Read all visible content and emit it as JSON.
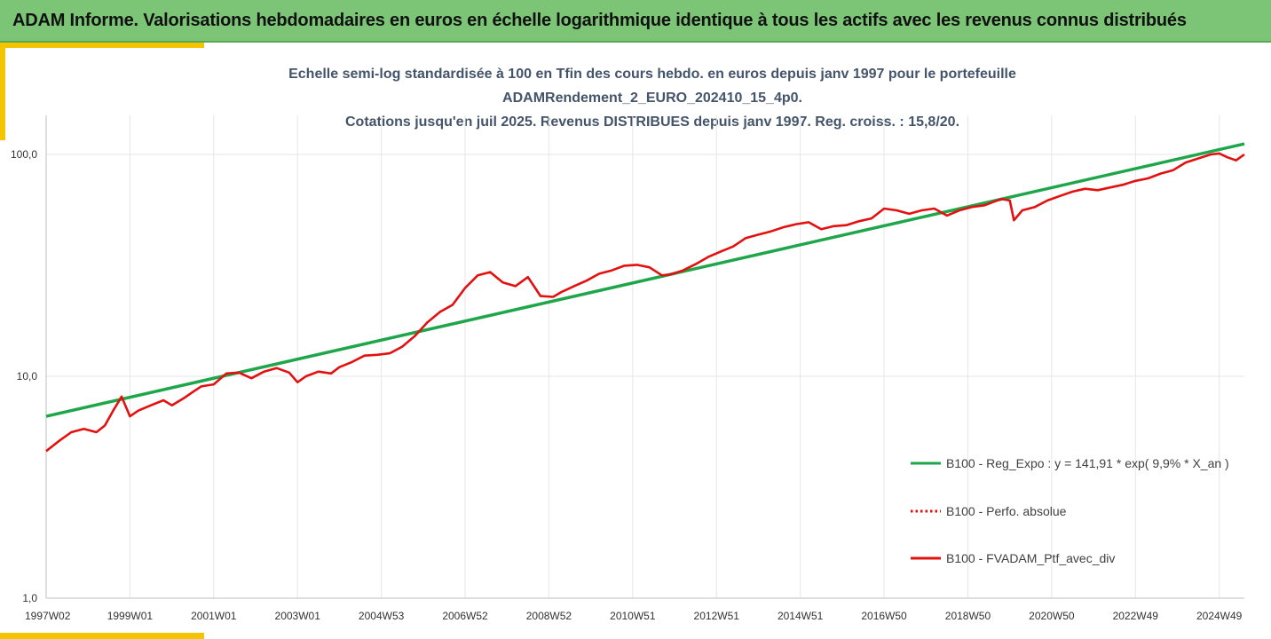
{
  "header": {
    "title": "ADAM Informe. Valorisations hebdomadaires en euros en échelle logarithmique identique à tous les actifs avec les revenus connus distribués"
  },
  "chart_data": {
    "type": "line",
    "title_lines": [
      "Echelle semi-log standardisée à 100 en Tfin des cours hebdo.  en euros depuis janv 1997 pour le portefeuille",
      "ADAMRendement_2_EURO_202410_15_4p0.",
      "Cotations  jusqu'en juil 2025. Revenus DISTRIBUES depuis janv 1997. Reg. croiss. : 15,8/20."
    ],
    "y_scale": "log",
    "ylim": [
      1,
      150
    ],
    "y_ticks": [
      {
        "value": 1,
        "label": "1,0"
      },
      {
        "value": 10,
        "label": "10,0"
      },
      {
        "value": 100,
        "label": "100,0"
      }
    ],
    "xlim": [
      1997.0,
      2025.6
    ],
    "x_ticks": [
      {
        "value": 1997.0,
        "label": "1997W02"
      },
      {
        "value": 1999.0,
        "label": "1999W01"
      },
      {
        "value": 2001.0,
        "label": "2001W01"
      },
      {
        "value": 2003.0,
        "label": "2003W01"
      },
      {
        "value": 2005.0,
        "label": "2004W53"
      },
      {
        "value": 2007.0,
        "label": "2006W52"
      },
      {
        "value": 2009.0,
        "label": "2008W52"
      },
      {
        "value": 2011.0,
        "label": "2010W51"
      },
      {
        "value": 2013.0,
        "label": "2012W51"
      },
      {
        "value": 2015.0,
        "label": "2014W51"
      },
      {
        "value": 2017.0,
        "label": "2016W50"
      },
      {
        "value": 2019.0,
        "label": "2018W50"
      },
      {
        "value": 2021.0,
        "label": "2020W50"
      },
      {
        "value": 2023.0,
        "label": "2022W49"
      },
      {
        "value": 2025.0,
        "label": "2024W49"
      }
    ],
    "grid": true,
    "legend_position": "bottom-right",
    "series": [
      {
        "name": "B100 - Reg_Expo : y = 141,91 * exp( 9,9% *  X_an )",
        "color": "#1fa64a",
        "style": "solid",
        "x": [
          1997.0,
          2025.6
        ],
        "y": [
          6.6,
          111.6
        ]
      },
      {
        "name": "B100 - Perfo. absolue",
        "color": "#e31010",
        "style": "dotted",
        "x": [],
        "y": []
      },
      {
        "name": "B100 - FVADAM_Ptf_avec_div",
        "color": "#e31010",
        "style": "solid",
        "x": [
          1997.0,
          1997.3,
          1997.6,
          1997.9,
          1998.2,
          1998.4,
          1998.6,
          1998.8,
          1999.0,
          1999.2,
          1999.5,
          1999.8,
          2000.0,
          2000.3,
          2000.5,
          2000.7,
          2001.0,
          2001.3,
          2001.6,
          2001.9,
          2002.2,
          2002.5,
          2002.8,
          2003.0,
          2003.2,
          2003.5,
          2003.8,
          2004.0,
          2004.3,
          2004.6,
          2004.9,
          2005.2,
          2005.5,
          2005.8,
          2006.1,
          2006.4,
          2006.7,
          2007.0,
          2007.3,
          2007.6,
          2007.9,
          2008.2,
          2008.5,
          2008.8,
          2009.1,
          2009.3,
          2009.6,
          2009.9,
          2010.2,
          2010.5,
          2010.8,
          2011.1,
          2011.4,
          2011.7,
          2011.9,
          2012.2,
          2012.5,
          2012.8,
          2013.1,
          2013.4,
          2013.7,
          2014.0,
          2014.3,
          2014.6,
          2014.9,
          2015.2,
          2015.5,
          2015.8,
          2016.1,
          2016.4,
          2016.7,
          2017.0,
          2017.3,
          2017.6,
          2017.9,
          2018.2,
          2018.5,
          2018.8,
          2019.1,
          2019.4,
          2019.6,
          2019.8,
          2020.0,
          2020.1,
          2020.3,
          2020.6,
          2020.9,
          2021.2,
          2021.5,
          2021.8,
          2022.1,
          2022.4,
          2022.7,
          2023.0,
          2023.3,
          2023.6,
          2023.9,
          2024.2,
          2024.5,
          2024.8,
          2025.0,
          2025.2,
          2025.4,
          2025.6
        ],
        "y": [
          4.6,
          5.1,
          5.6,
          5.8,
          5.6,
          6.0,
          7.0,
          8.1,
          6.6,
          7.0,
          7.4,
          7.8,
          7.4,
          8.0,
          8.5,
          9.0,
          9.2,
          10.3,
          10.4,
          9.8,
          10.5,
          10.9,
          10.4,
          9.4,
          10.0,
          10.5,
          10.3,
          11.0,
          11.6,
          12.4,
          12.5,
          12.7,
          13.6,
          15.2,
          17.5,
          19.5,
          21.0,
          25.0,
          28.5,
          29.5,
          26.5,
          25.5,
          28.0,
          23.0,
          22.8,
          24.0,
          25.5,
          27.0,
          29.0,
          30.0,
          31.5,
          31.8,
          31.0,
          28.5,
          28.8,
          30.0,
          32.0,
          34.5,
          36.5,
          38.5,
          42.0,
          43.5,
          45.0,
          47.0,
          48.5,
          49.5,
          46.0,
          47.5,
          48.0,
          50.0,
          51.5,
          57.0,
          56.0,
          54.0,
          56.0,
          57.0,
          53.0,
          56.0,
          58.0,
          59.0,
          61.0,
          63.0,
          62.0,
          50.5,
          56.0,
          58.0,
          62.0,
          65.0,
          68.0,
          70.0,
          69.0,
          71.0,
          73.0,
          76.0,
          78.0,
          82.0,
          85.0,
          92.0,
          96.0,
          100.0,
          101.0,
          97.0,
          94.0,
          100.0
        ]
      }
    ]
  }
}
